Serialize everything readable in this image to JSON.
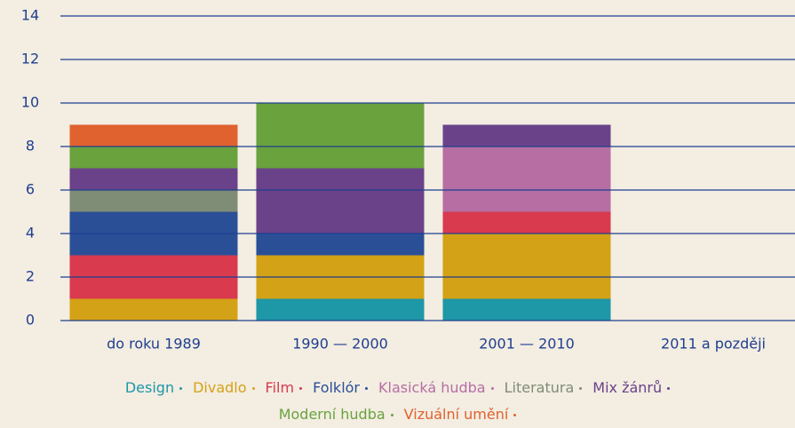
{
  "chart_data": {
    "type": "stacked-bar",
    "categories": [
      "do roku 1989",
      "1990 — 2000",
      "2001 — 2010",
      "2011 a později"
    ],
    "series": [
      {
        "name": "Design",
        "color": "#1e97a6",
        "values": [
          0,
          1,
          1,
          0
        ]
      },
      {
        "name": "Divadlo",
        "color": "#d4a216",
        "values": [
          1,
          2,
          3,
          0
        ]
      },
      {
        "name": "Film",
        "color": "#d93a4e",
        "values": [
          2,
          0,
          1,
          0
        ]
      },
      {
        "name": "Folklór",
        "color": "#2a4f97",
        "values": [
          2,
          1,
          0,
          0
        ]
      },
      {
        "name": "Klasická hudba",
        "color": "#b66ea3",
        "values": [
          0,
          0,
          3,
          0
        ]
      },
      {
        "name": "Literatura",
        "color": "#7f8c76",
        "values": [
          1,
          0,
          0,
          0
        ]
      },
      {
        "name": "Mix žánrů",
        "color": "#6a4289",
        "values": [
          1,
          3,
          1,
          0
        ]
      },
      {
        "name": "Moderní hudba",
        "color": "#6aa23e",
        "values": [
          1,
          3,
          0,
          0
        ]
      },
      {
        "name": "Vizuální umění",
        "color": "#e0622f",
        "values": [
          1,
          0,
          0,
          0
        ]
      }
    ],
    "ylim": [
      0,
      14
    ],
    "yticks": [
      0,
      2,
      4,
      6,
      8,
      10,
      12,
      14
    ],
    "grid": true,
    "grid_color": "#1f3f8f"
  }
}
